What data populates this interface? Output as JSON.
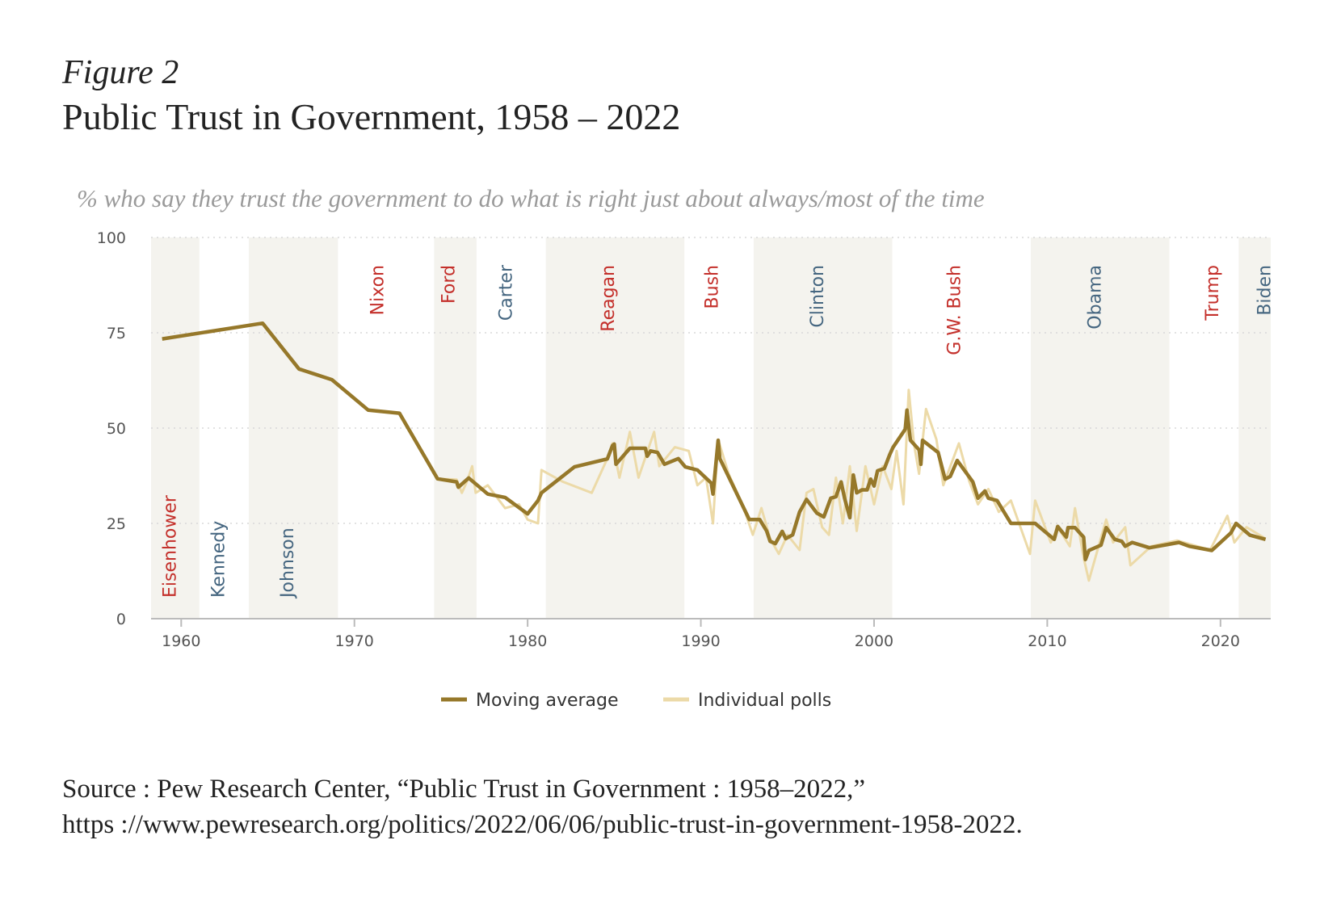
{
  "header": {
    "figure_label": "Figure 2",
    "title": "Public Trust in Government, 1958 – 2022",
    "subtitle": "% who say they trust the government to do what is right just about always/most of the time"
  },
  "source": {
    "line1": "Source : Pew Research Center, “Public Trust in Government : 1958–2022,”",
    "line2": "https ://www.pewresearch.org/politics/2022/06/06/public-trust-in-government-1958-2022."
  },
  "chart_data": {
    "type": "line",
    "xlim": [
      1958.26,
      2022.9
    ],
    "ylim": [
      0,
      100
    ],
    "x_ticks": [
      1960,
      1970,
      1980,
      1990,
      2000,
      2010,
      2020
    ],
    "y_ticks": [
      0,
      25,
      50,
      75,
      100
    ],
    "grid": "horizontal dotted",
    "legend_placement": "bottom-center",
    "colors": {
      "moving_average": "#96782a",
      "individual_polls": "#ecdaa8",
      "shade": "#f4f3ee",
      "republican": "#c4302b",
      "democrat": "#456680",
      "axis": "#bbbbbb"
    },
    "presidents": [
      {
        "name": "Eisenhower",
        "start": 1958.26,
        "end": 1961.05,
        "party": "republican",
        "shaded": true,
        "label_year": 1959.3,
        "label_pos": "bottom"
      },
      {
        "name": "Kennedy",
        "start": 1961.05,
        "end": 1963.9,
        "party": "democrat",
        "shaded": false,
        "label_year": 1962.1,
        "label_pos": "bottom"
      },
      {
        "name": "Johnson",
        "start": 1963.9,
        "end": 1969.05,
        "party": "democrat",
        "shaded": true,
        "label_year": 1966.1,
        "label_pos": "bottom"
      },
      {
        "name": "Nixon",
        "start": 1969.05,
        "end": 1974.6,
        "party": "republican",
        "shaded": false,
        "label_year": 1971.3,
        "label_pos": "top"
      },
      {
        "name": "Ford",
        "start": 1974.6,
        "end": 1977.05,
        "party": "republican",
        "shaded": true,
        "label_year": 1975.4,
        "label_pos": "top"
      },
      {
        "name": "Carter",
        "start": 1977.05,
        "end": 1981.05,
        "party": "democrat",
        "shaded": false,
        "label_year": 1978.7,
        "label_pos": "top"
      },
      {
        "name": "Reagan",
        "start": 1981.05,
        "end": 1989.05,
        "party": "republican",
        "shaded": true,
        "label_year": 1984.6,
        "label_pos": "top"
      },
      {
        "name": "Bush",
        "start": 1989.05,
        "end": 1993.05,
        "party": "republican",
        "shaded": false,
        "label_year": 1990.6,
        "label_pos": "top"
      },
      {
        "name": "Clinton",
        "start": 1993.05,
        "end": 2001.05,
        "party": "democrat",
        "shaded": true,
        "label_year": 1996.7,
        "label_pos": "top"
      },
      {
        "name": "G.W. Bush",
        "start": 2001.05,
        "end": 2009.05,
        "party": "republican",
        "shaded": false,
        "label_year": 2004.6,
        "label_pos": "top"
      },
      {
        "name": "Obama",
        "start": 2009.05,
        "end": 2017.05,
        "party": "democrat",
        "shaded": true,
        "label_year": 2012.7,
        "label_pos": "top"
      },
      {
        "name": "Trump",
        "start": 2017.05,
        "end": 2021.05,
        "party": "republican",
        "shaded": false,
        "label_year": 2019.5,
        "label_pos": "top"
      },
      {
        "name": "Biden",
        "start": 2021.05,
        "end": 2022.9,
        "party": "democrat",
        "shaded": true,
        "label_year": 2022.5,
        "label_pos": "top"
      }
    ],
    "series": [
      {
        "name": "Moving average",
        "points": [
          [
            1958.9,
            73.4
          ],
          [
            1964.7,
            77.5
          ],
          [
            1966.8,
            65.5
          ],
          [
            1968.7,
            62.7
          ],
          [
            1970.8,
            54.7
          ],
          [
            1972.6,
            53.9
          ],
          [
            1974.8,
            36.7
          ],
          [
            1975.9,
            35.9
          ],
          [
            1976.0,
            34.5
          ],
          [
            1976.6,
            36.9
          ],
          [
            1977.7,
            32.7
          ],
          [
            1978.7,
            31.8
          ],
          [
            1980.0,
            27.5
          ],
          [
            1980.6,
            31
          ],
          [
            1980.8,
            33
          ],
          [
            1982.7,
            39.8
          ],
          [
            1984.6,
            41.9
          ],
          [
            1984.9,
            45.4
          ],
          [
            1985.0,
            45.8
          ],
          [
            1985.1,
            40.5
          ],
          [
            1985.9,
            44.7
          ],
          [
            1986.8,
            44.7
          ],
          [
            1986.9,
            42.6
          ],
          [
            1987.1,
            44
          ],
          [
            1987.5,
            43.6
          ],
          [
            1987.9,
            40.5
          ],
          [
            1988.7,
            42
          ],
          [
            1989.1,
            39.8
          ],
          [
            1989.8,
            39
          ],
          [
            1990.6,
            35.6
          ],
          [
            1990.7,
            32.7
          ],
          [
            1991.0,
            46.8
          ],
          [
            1991.1,
            42
          ],
          [
            1992.8,
            26
          ],
          [
            1993.4,
            26
          ],
          [
            1993.8,
            23
          ],
          [
            1994.0,
            20.3
          ],
          [
            1994.3,
            19.7
          ],
          [
            1994.7,
            22.9
          ],
          [
            1994.9,
            21
          ],
          [
            1995.3,
            22
          ],
          [
            1995.7,
            28
          ],
          [
            1996.1,
            31.3
          ],
          [
            1996.7,
            27.7
          ],
          [
            1997.1,
            26.7
          ],
          [
            1997.5,
            31.6
          ],
          [
            1997.8,
            32
          ],
          [
            1998.1,
            35.9
          ],
          [
            1998.3,
            31.6
          ],
          [
            1998.6,
            26.5
          ],
          [
            1998.8,
            37.7
          ],
          [
            1999.0,
            33
          ],
          [
            1999.3,
            33.8
          ],
          [
            1999.6,
            33.8
          ],
          [
            1999.8,
            36.6
          ],
          [
            2000.0,
            34.8
          ],
          [
            2000.2,
            38.8
          ],
          [
            2000.6,
            39.4
          ],
          [
            2000.9,
            43
          ],
          [
            2001.1,
            45
          ],
          [
            2001.8,
            49.7
          ],
          [
            2001.9,
            54.7
          ],
          [
            2002.1,
            46.8
          ],
          [
            2002.6,
            44.3
          ],
          [
            2002.7,
            40.5
          ],
          [
            2002.8,
            46.8
          ],
          [
            2003.7,
            43.6
          ],
          [
            2004.1,
            36.6
          ],
          [
            2004.4,
            37.3
          ],
          [
            2004.8,
            41.5
          ],
          [
            2005.7,
            35.9
          ],
          [
            2006.0,
            31.6
          ],
          [
            2006.4,
            33.5
          ],
          [
            2006.6,
            31.6
          ],
          [
            2007.1,
            31
          ],
          [
            2007.9,
            25
          ],
          [
            2009.3,
            25
          ],
          [
            2010.4,
            20.8
          ],
          [
            2010.6,
            24.2
          ],
          [
            2011.1,
            21.4
          ],
          [
            2011.2,
            23.9
          ],
          [
            2011.6,
            23.9
          ],
          [
            2012.1,
            21.4
          ],
          [
            2012.2,
            15.5
          ],
          [
            2012.4,
            17.9
          ],
          [
            2013.1,
            19.3
          ],
          [
            2013.4,
            23.9
          ],
          [
            2013.9,
            20.8
          ],
          [
            2014.3,
            20.3
          ],
          [
            2014.5,
            19
          ],
          [
            2014.9,
            20
          ],
          [
            2015.9,
            18.6
          ],
          [
            2017.6,
            20
          ],
          [
            2018.2,
            19
          ],
          [
            2019.5,
            17.9
          ],
          [
            2020.6,
            22.5
          ],
          [
            2020.9,
            25
          ],
          [
            2021.7,
            21.9
          ],
          [
            2022.6,
            20.8
          ]
        ]
      },
      {
        "name": "Individual polls",
        "points": [
          [
            1974.8,
            36.7
          ],
          [
            1975.9,
            36.5
          ],
          [
            1976.2,
            33
          ],
          [
            1976.5,
            36
          ],
          [
            1976.8,
            40
          ],
          [
            1977.0,
            33
          ],
          [
            1977.7,
            35
          ],
          [
            1978.7,
            29
          ],
          [
            1979.5,
            30
          ],
          [
            1980.0,
            26
          ],
          [
            1980.6,
            25
          ],
          [
            1980.8,
            39
          ],
          [
            1982.0,
            36
          ],
          [
            1983.7,
            33
          ],
          [
            1984.6,
            42
          ],
          [
            1984.9,
            46
          ],
          [
            1985.3,
            37
          ],
          [
            1985.9,
            49
          ],
          [
            1986.4,
            37
          ],
          [
            1987.3,
            49
          ],
          [
            1987.6,
            40
          ],
          [
            1988.5,
            45
          ],
          [
            1989.3,
            44
          ],
          [
            1989.8,
            35
          ],
          [
            1990.3,
            37
          ],
          [
            1990.7,
            25
          ],
          [
            1991.0,
            47
          ],
          [
            1991.6,
            38
          ],
          [
            1992.4,
            30
          ],
          [
            1993.0,
            22
          ],
          [
            1993.5,
            29
          ],
          [
            1994.0,
            21
          ],
          [
            1994.5,
            17
          ],
          [
            1995.0,
            22
          ],
          [
            1995.7,
            18
          ],
          [
            1996.1,
            33
          ],
          [
            1996.5,
            34
          ],
          [
            1997.0,
            24
          ],
          [
            1997.4,
            22
          ],
          [
            1997.8,
            37
          ],
          [
            1998.2,
            25
          ],
          [
            1998.6,
            40
          ],
          [
            1999.0,
            23
          ],
          [
            1999.5,
            40
          ],
          [
            2000.0,
            30
          ],
          [
            2000.5,
            40
          ],
          [
            2001.0,
            34
          ],
          [
            2001.3,
            44
          ],
          [
            2001.7,
            30
          ],
          [
            2002.0,
            60
          ],
          [
            2002.3,
            46
          ],
          [
            2002.6,
            38
          ],
          [
            2003.0,
            55
          ],
          [
            2003.6,
            47
          ],
          [
            2004.0,
            35
          ],
          [
            2004.9,
            46
          ],
          [
            2005.5,
            36
          ],
          [
            2006.0,
            30
          ],
          [
            2006.6,
            34
          ],
          [
            2007.2,
            28
          ],
          [
            2007.9,
            31
          ],
          [
            2009.0,
            17
          ],
          [
            2009.3,
            31
          ],
          [
            2010.2,
            20
          ],
          [
            2010.6,
            24
          ],
          [
            2011.3,
            19
          ],
          [
            2011.6,
            29
          ],
          [
            2012.1,
            16
          ],
          [
            2012.4,
            10
          ],
          [
            2013.4,
            26
          ],
          [
            2013.8,
            20
          ],
          [
            2014.5,
            24
          ],
          [
            2014.8,
            14
          ],
          [
            2016.0,
            19
          ],
          [
            2017.5,
            20.5
          ],
          [
            2019.4,
            18
          ],
          [
            2020.4,
            27
          ],
          [
            2020.8,
            20
          ],
          [
            2021.5,
            24
          ],
          [
            2022.6,
            21
          ]
        ]
      }
    ]
  }
}
